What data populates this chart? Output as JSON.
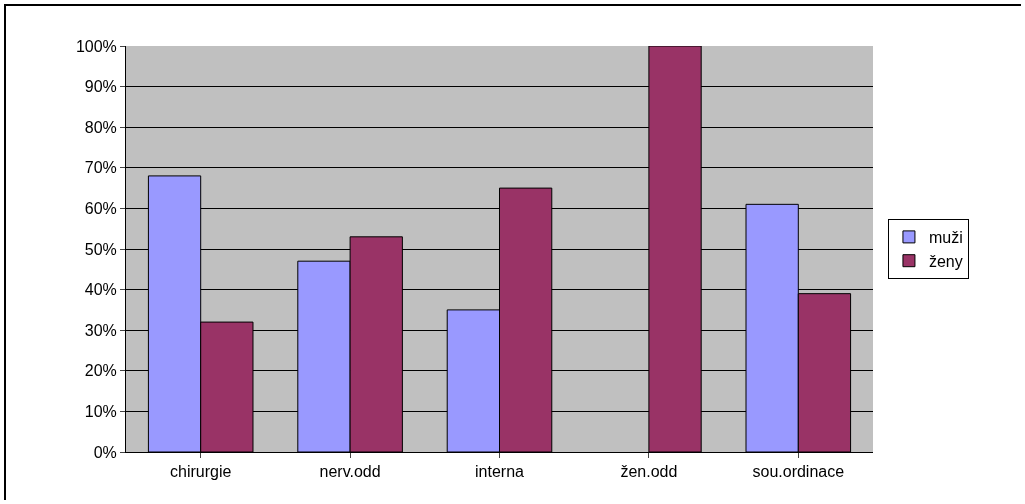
{
  "chart_data": {
    "type": "bar",
    "categories": [
      "chirurgie",
      "nerv.odd",
      "interna",
      "žen.odd",
      "sou.ordinace"
    ],
    "series": [
      {
        "name": "muži",
        "color": "#9999ff",
        "values": [
          68,
          47,
          35,
          null,
          61
        ]
      },
      {
        "name": "ženy",
        "color": "#993366",
        "values": [
          32,
          53,
          65,
          100,
          39
        ]
      }
    ],
    "ylim": [
      0,
      100
    ],
    "yticks": [
      {
        "value": 0,
        "label": "0%"
      },
      {
        "value": 10,
        "label": "10%"
      },
      {
        "value": 20,
        "label": "20%"
      },
      {
        "value": 30,
        "label": "30%"
      },
      {
        "value": 40,
        "label": "40%"
      },
      {
        "value": 50,
        "label": "50%"
      },
      {
        "value": 60,
        "label": "60%"
      },
      {
        "value": 70,
        "label": "70%"
      },
      {
        "value": 80,
        "label": "80%"
      },
      {
        "value": 90,
        "label": "90%"
      },
      {
        "value": 100,
        "label": "100%"
      }
    ],
    "grid": "y",
    "legend": "right"
  }
}
